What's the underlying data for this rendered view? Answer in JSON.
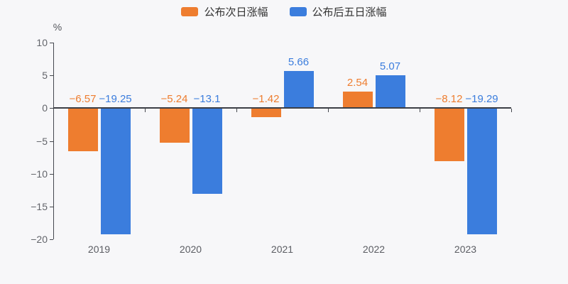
{
  "colors": {
    "background": "#f7f7f9",
    "axis": "#45484f",
    "zero_line": "#3c3f46",
    "tick_label": "#63656b",
    "category_label": "#5b5d63",
    "legend_text": "#333333"
  },
  "chart_data": {
    "type": "bar",
    "categories": [
      "2019",
      "2020",
      "2021",
      "2022",
      "2023"
    ],
    "series": [
      {
        "name": "公布次日涨幅",
        "color": "#ee7d2f",
        "values": [
          -6.57,
          -5.24,
          -1.42,
          2.54,
          -8.12
        ],
        "labels": [
          "−6.57",
          "−5.24",
          "−1.42",
          "2.54",
          "−8.12"
        ]
      },
      {
        "name": "公布后五日涨幅",
        "color": "#3b7ddd",
        "values": [
          -19.25,
          -13.1,
          5.66,
          5.07,
          -19.29
        ],
        "labels": [
          "−19.25",
          "−13.1",
          "5.66",
          "5.07",
          "−19.29"
        ]
      }
    ],
    "title": "",
    "xlabel": "",
    "ylabel": "%",
    "ylim": [
      -20,
      10
    ],
    "yticks": [
      10,
      5,
      0,
      -5,
      -10,
      -15,
      -20
    ],
    "ytick_labels": [
      "10",
      "5",
      "0",
      "−5",
      "−10",
      "−15",
      "−20"
    ],
    "grid": false,
    "legend_position": "top",
    "x_axis_on_zero": true
  }
}
